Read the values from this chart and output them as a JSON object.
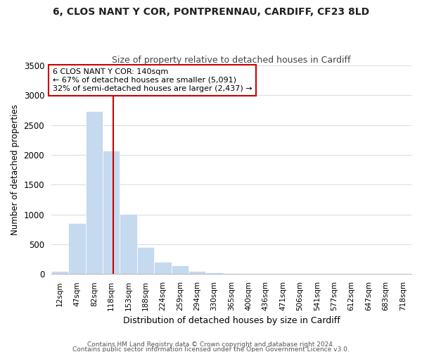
{
  "title": "6, CLOS NANT Y COR, PONTPRENNAU, CARDIFF, CF23 8LD",
  "subtitle": "Size of property relative to detached houses in Cardiff",
  "xlabel": "Distribution of detached houses by size in Cardiff",
  "ylabel": "Number of detached properties",
  "categories": [
    "12sqm",
    "47sqm",
    "82sqm",
    "118sqm",
    "153sqm",
    "188sqm",
    "224sqm",
    "259sqm",
    "294sqm",
    "330sqm",
    "365sqm",
    "400sqm",
    "436sqm",
    "471sqm",
    "506sqm",
    "541sqm",
    "577sqm",
    "612sqm",
    "647sqm",
    "683sqm",
    "718sqm"
  ],
  "bar_values": [
    55,
    850,
    2730,
    2075,
    1010,
    455,
    205,
    145,
    55,
    30,
    15,
    0,
    0,
    0,
    0,
    0,
    0,
    0,
    0,
    0,
    0
  ],
  "bar_color": "#c5d9ef",
  "bar_edgecolor": "#ffffff",
  "vline_pos": 3.62,
  "vline_color": "#cc0000",
  "annotation_text": "6 CLOS NANT Y COR: 140sqm\n← 67% of detached houses are smaller (5,091)\n32% of semi-detached houses are larger (2,437) →",
  "annotation_box_facecolor": "#ffffff",
  "annotation_box_edgecolor": "#cc0000",
  "ylim": [
    0,
    3500
  ],
  "yticks": [
    0,
    500,
    1000,
    1500,
    2000,
    2500,
    3000,
    3500
  ],
  "footer1": "Contains HM Land Registry data © Crown copyright and database right 2024.",
  "footer2": "Contains public sector information licensed under the Open Government Licence v3.0.",
  "background_color": "#ffffff",
  "grid_color": "#d0dce8",
  "title_fontsize": 10,
  "subtitle_fontsize": 9,
  "ylabel_fontsize": 8.5,
  "xlabel_fontsize": 9,
  "tick_fontsize": 7.5,
  "annotation_fontsize": 8,
  "footer_fontsize": 6.5
}
